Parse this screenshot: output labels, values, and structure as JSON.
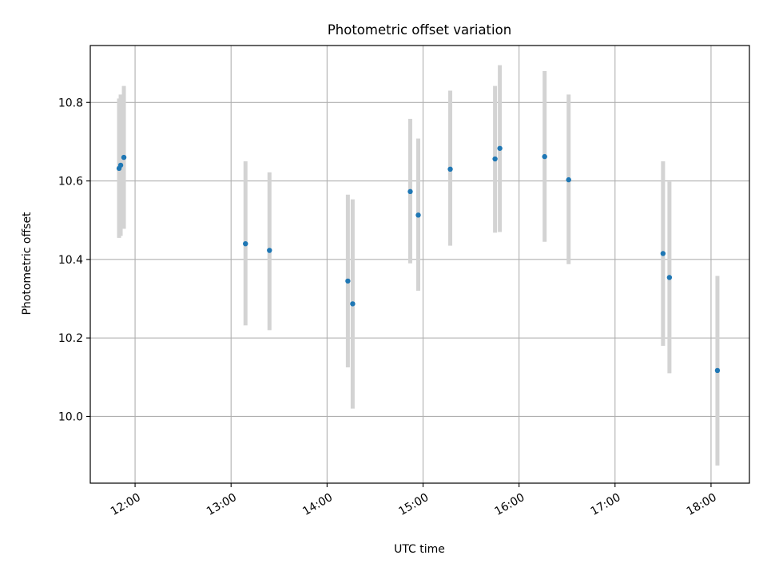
{
  "chart_data": {
    "type": "scatter",
    "title": "Photometric offset variation",
    "xlabel": "UTC time",
    "ylabel": "Photometric offset",
    "x_ticks": [
      "12:00",
      "13:00",
      "14:00",
      "15:00",
      "16:00",
      "17:00",
      "18:00"
    ],
    "y_ticks": [
      "10.0",
      "10.2",
      "10.4",
      "10.6",
      "10.8"
    ],
    "xlim": [
      "11:32",
      "18:24"
    ],
    "ylim": [
      9.83,
      10.945
    ],
    "grid": true,
    "marker_color": "#1f77b4",
    "errorbar_color": "#d3d3d3",
    "points": [
      {
        "time": "11:50",
        "y": 10.632,
        "low": 10.455,
        "high": 10.81
      },
      {
        "time": "11:51",
        "y": 10.64,
        "low": 10.46,
        "high": 10.82
      },
      {
        "time": "11:53",
        "y": 10.66,
        "low": 10.478,
        "high": 10.842
      },
      {
        "time": "13:09",
        "y": 10.44,
        "low": 10.232,
        "high": 10.65
      },
      {
        "time": "13:24",
        "y": 10.423,
        "low": 10.22,
        "high": 10.622
      },
      {
        "time": "14:13",
        "y": 10.345,
        "low": 10.125,
        "high": 10.565
      },
      {
        "time": "14:16",
        "y": 10.287,
        "low": 10.02,
        "high": 10.553
      },
      {
        "time": "14:52",
        "y": 10.573,
        "low": 10.39,
        "high": 10.758
      },
      {
        "time": "14:57",
        "y": 10.513,
        "low": 10.32,
        "high": 10.708
      },
      {
        "time": "15:17",
        "y": 10.63,
        "low": 10.435,
        "high": 10.83
      },
      {
        "time": "15:45",
        "y": 10.656,
        "low": 10.468,
        "high": 10.842
      },
      {
        "time": "15:48",
        "y": 10.683,
        "low": 10.47,
        "high": 10.895
      },
      {
        "time": "16:16",
        "y": 10.662,
        "low": 10.445,
        "high": 10.88
      },
      {
        "time": "16:31",
        "y": 10.603,
        "low": 10.388,
        "high": 10.82
      },
      {
        "time": "17:30",
        "y": 10.415,
        "low": 10.18,
        "high": 10.65
      },
      {
        "time": "17:34",
        "y": 10.354,
        "low": 10.11,
        "high": 10.598
      },
      {
        "time": "18:04",
        "y": 10.117,
        "low": 9.875,
        "high": 10.358
      }
    ]
  }
}
